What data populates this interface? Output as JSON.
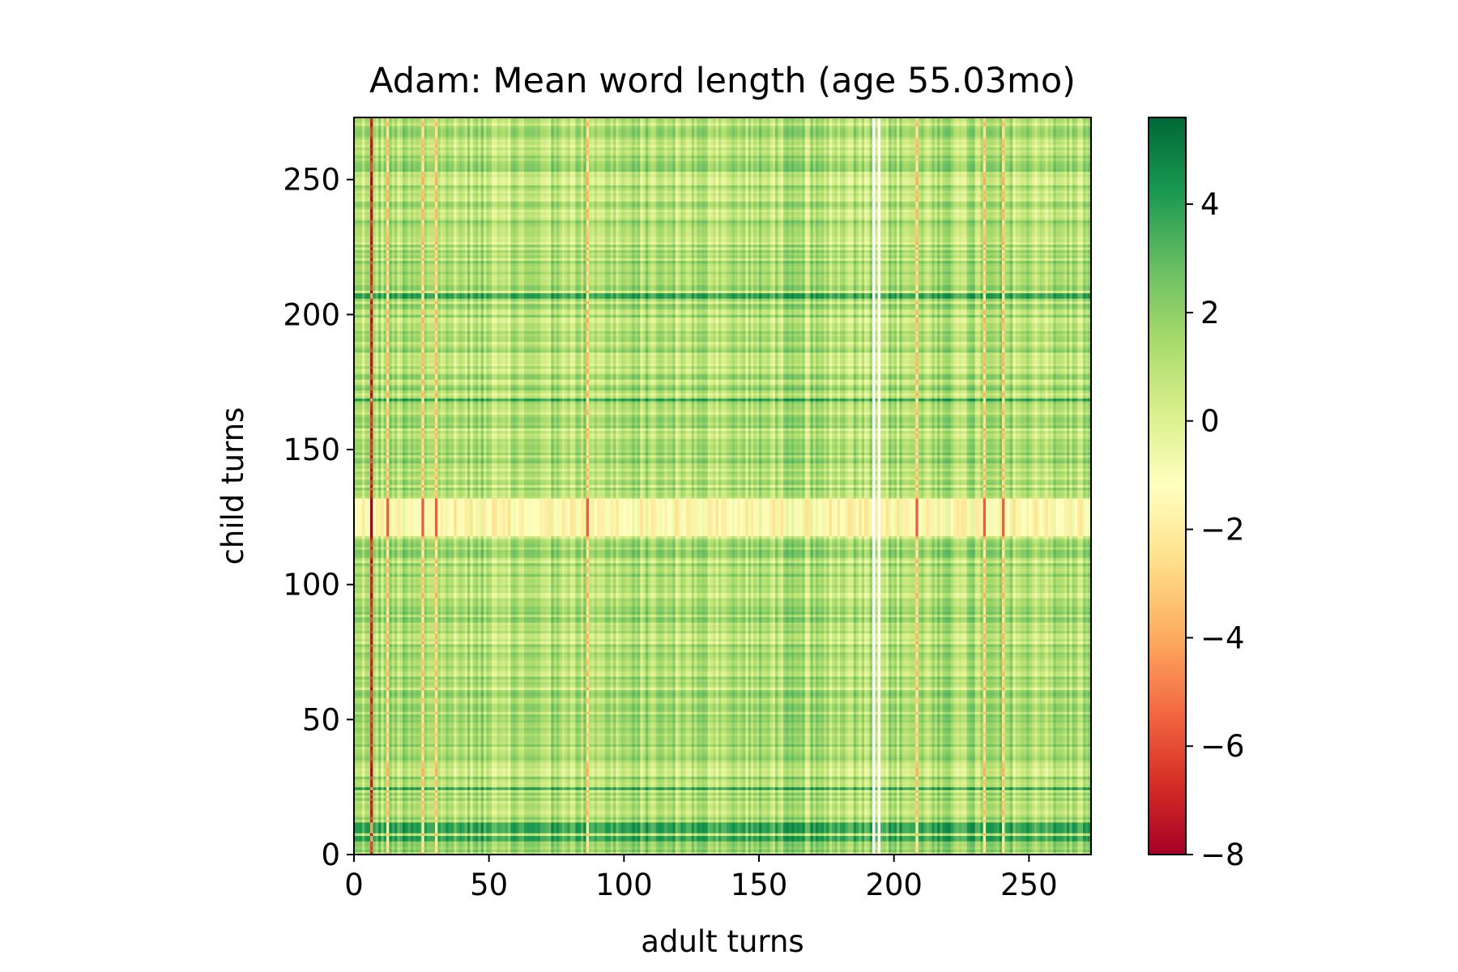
{
  "chart_data": {
    "type": "heatmap",
    "title": "Adam: Mean word length (age 55.03mo)",
    "xlabel": "adult turns",
    "ylabel": "child turns",
    "xlim": [
      0,
      273
    ],
    "ylim": [
      0,
      273
    ],
    "x_ticks": [
      0,
      50,
      100,
      150,
      200,
      250
    ],
    "y_ticks": [
      0,
      50,
      100,
      150,
      200,
      250
    ],
    "x_tick_labels": [
      "0",
      "50",
      "100",
      "150",
      "200",
      "250"
    ],
    "y_tick_labels": [
      "0",
      "50",
      "100",
      "150",
      "200",
      "250"
    ],
    "colorbar": {
      "colormap": "RdYlGn",
      "range": [
        -8,
        5.6
      ],
      "ticks": [
        4,
        2,
        0,
        -2,
        -4,
        -6,
        -8
      ],
      "tick_labels": [
        "4",
        "2",
        "0",
        "−2",
        "−4",
        "−6",
        "−8"
      ]
    },
    "colormap_stops": [
      "#a50026",
      "#d73027",
      "#f46d43",
      "#fdae61",
      "#fee08b",
      "#ffffbf",
      "#d9ef8b",
      "#a6d96a",
      "#66bd63",
      "#1a9850",
      "#006837"
    ],
    "grid": false,
    "description_of_pattern": {
      "low_value_columns": [
        6,
        12,
        25,
        30,
        86,
        208,
        233,
        240
      ],
      "low_value_rows": [
        118,
        119,
        120,
        121,
        122,
        123,
        124,
        125,
        126,
        127,
        128,
        129,
        130,
        131
      ],
      "high_value_rows": [
        5,
        6,
        8,
        9,
        10,
        11,
        24,
        168,
        206,
        207
      ],
      "blank_columns": [
        192,
        194
      ],
      "baseline_value": 1.2
    }
  }
}
